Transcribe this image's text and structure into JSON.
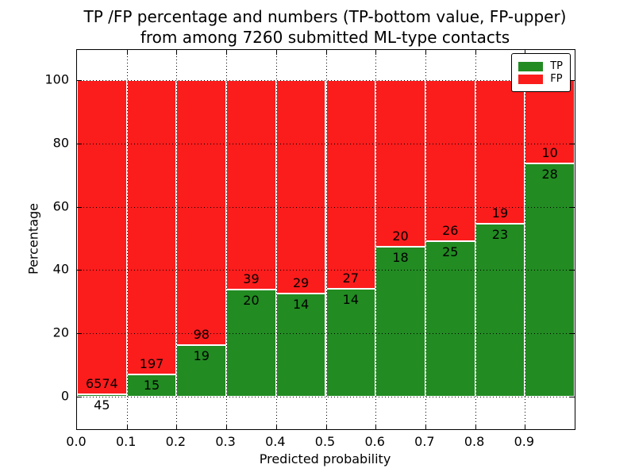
{
  "title": {
    "line1": "TP /FP percentage and numbers (TP-bottom value, FP-upper)",
    "line2": "from among 7260 submitted ML-type contacts"
  },
  "axes": {
    "xlabel": "Predicted probability",
    "ylabel": "Percentage",
    "xtick_labels": [
      "0.0",
      "0.1",
      "0.2",
      "0.3",
      "0.4",
      "0.5",
      "0.6",
      "0.7",
      "0.8",
      "0.9"
    ],
    "ytick_labels": [
      "0",
      "20",
      "40",
      "60",
      "80",
      "100"
    ],
    "ytick_values": [
      0,
      20,
      40,
      60,
      80,
      100
    ]
  },
  "legend": {
    "items": [
      {
        "label": "TP",
        "color": "#228b22"
      },
      {
        "label": "FP",
        "color": "#fb1c1c"
      }
    ]
  },
  "colors": {
    "tp": "#228b22",
    "fp": "#fb1c1c",
    "grid": "#000000",
    "bar_edge": "#ffffff",
    "text": "#000000"
  },
  "chart_data": {
    "type": "bar",
    "stacked": true,
    "normalized_to_percent": true,
    "title": "TP /FP percentage and numbers (TP-bottom value, FP-upper) from among 7260 submitted ML-type contacts",
    "xlabel": "Predicted probability",
    "ylabel": "Percentage",
    "total_contacts": 7260,
    "bin_edges": [
      0.0,
      0.1,
      0.2,
      0.3,
      0.4,
      0.5,
      0.6,
      0.7,
      0.8,
      0.9,
      1.0
    ],
    "categories": [
      "0.0-0.1",
      "0.1-0.2",
      "0.2-0.3",
      "0.3-0.4",
      "0.4-0.5",
      "0.5-0.6",
      "0.6-0.7",
      "0.7-0.8",
      "0.8-0.9",
      "0.9-1.0"
    ],
    "series": [
      {
        "name": "TP",
        "counts": [
          45,
          15,
          19,
          20,
          14,
          14,
          18,
          25,
          23,
          28
        ]
      },
      {
        "name": "FP",
        "counts": [
          6574,
          197,
          98,
          39,
          29,
          27,
          20,
          26,
          19,
          10
        ]
      }
    ],
    "annotation_note": "TP count printed below segment boundary, FP count above it",
    "xlim": [
      0.0,
      1.0
    ],
    "ylim": [
      -10,
      110
    ],
    "grid": true,
    "legend_position": "upper right"
  }
}
